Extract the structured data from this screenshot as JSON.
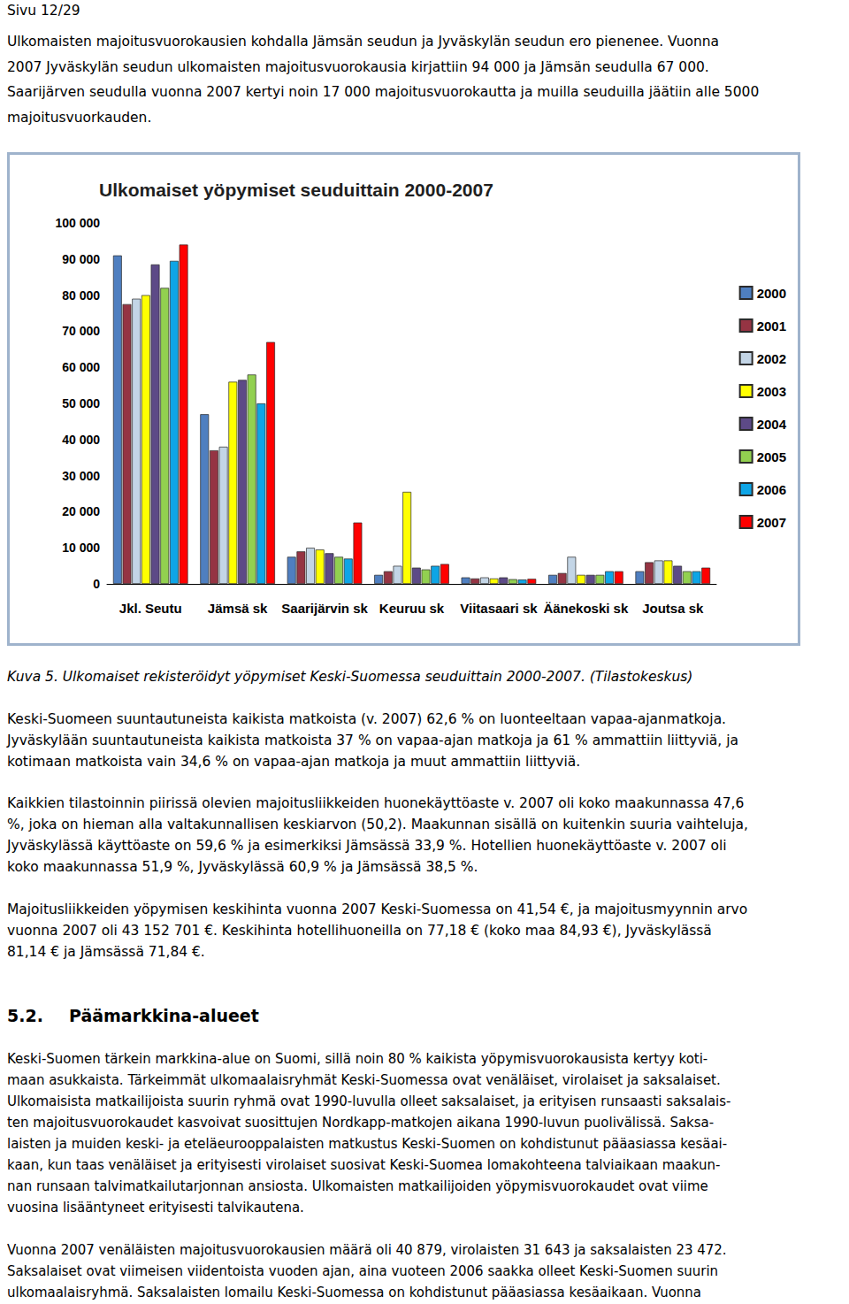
{
  "header": "Sivu 12/29",
  "intro": [
    "Ulkomaisten majoitusvuorokausien kohdalla Jämsän seudun ja Jyväskylän seudun ero pienenee. Vuonna",
    "2007 Jyväskylän seudun ulkomaisten majoitusvuorokausia kirjattiin 94 000 ja Jämsän seudulla 67 000.",
    "Saarijärven seudulla vuonna 2007 kertyi noin 17 000 majoitusvuorokautta ja muilla seuduilla jäätiin alle 5000",
    "majoitusvuorkauden."
  ],
  "chart_data": {
    "type": "bar",
    "title": "Ulkomaiset yöpymiset seuduittain 2000-2007",
    "categories": [
      "Jkl. Seutu",
      "Jämsä sk",
      "Saarijärvin sk",
      "Keuruu sk",
      "Viitasaari sk",
      "Äänekoski sk",
      "Joutsa sk"
    ],
    "series": [
      {
        "name": "2000",
        "color": "#4f7fc0",
        "values": [
          91000,
          47000,
          7500,
          2500,
          1800,
          2500,
          3500
        ]
      },
      {
        "name": "2001",
        "color": "#953443",
        "values": [
          77500,
          37000,
          9000,
          3500,
          1500,
          3000,
          6000
        ]
      },
      {
        "name": "2002",
        "color": "#c3d5e6",
        "values": [
          79000,
          38000,
          10000,
          5000,
          1800,
          7500,
          6500
        ]
      },
      {
        "name": "2003",
        "color": "#ffff00",
        "values": [
          80000,
          56000,
          9500,
          25500,
          1500,
          2500,
          6500
        ]
      },
      {
        "name": "2004",
        "color": "#5d4a87",
        "values": [
          88500,
          56500,
          8500,
          4500,
          1800,
          2500,
          5000
        ]
      },
      {
        "name": "2005",
        "color": "#92d050",
        "values": [
          82000,
          58000,
          7500,
          4000,
          1300,
          2500,
          3500
        ]
      },
      {
        "name": "2006",
        "color": "#0ea5e6",
        "values": [
          89500,
          50000,
          7000,
          5000,
          1200,
          3500,
          3500
        ]
      },
      {
        "name": "2007",
        "color": "#ff0000",
        "values": [
          94000,
          67000,
          17000,
          5500,
          1400,
          3500,
          4500
        ]
      }
    ],
    "ylim": [
      0,
      100000
    ],
    "yticks": [
      0,
      {
        "value": 10000,
        "label": "10 000"
      },
      {
        "value": 20000,
        "label": "20 000"
      },
      {
        "value": 30000,
        "label": "30 000"
      },
      {
        "value": 40000,
        "label": "40 000"
      },
      {
        "value": 50000,
        "label": "50 000"
      },
      {
        "value": 60000,
        "label": "60 000"
      },
      {
        "value": 70000,
        "label": "70 000"
      },
      {
        "value": 80000,
        "label": "80 000"
      },
      {
        "value": 90000,
        "label": "90 000"
      },
      {
        "value": 100000,
        "label": "100 000"
      }
    ],
    "grid": false,
    "legend": "right"
  },
  "caption": "Kuva 5. Ulkomaiset rekisteröidyt yöpymiset Keski-Suomessa seuduittain 2000-2007. (Tilastokeskus)",
  "paragraphs": [
    [
      "Keski-Suomeen suuntautuneista kaikista matkoista (v. 2007) 62,6 % on luonteeltaan vapaa-ajanmatkoja.",
      "Jyväskylään suuntautuneista kaikista matkoista 37 % on vapaa-ajan matkoja ja 61 % ammattiin liittyviä, ja",
      "kotimaan matkoista vain 34,6 % on vapaa-ajan matkoja ja muut ammattiin liittyviä."
    ],
    [
      "Kaikkien tilastoinnin piirissä olevien majoitusliikkeiden huonekäyttöaste v. 2007 oli koko maakunnassa 47,6",
      "%, joka on hieman alla valtakunnallisen keskiarvon (50,2). Maakunnan sisällä on kuitenkin suuria vaihteluja,",
      "Jyväskylässä käyttöaste on 59,6 % ja esimerkiksi Jämsässä 33,9 %. Hotellien huonekäyttöaste v. 2007 oli",
      "koko maakunnassa 51,9 %, Jyväskylässä 60,9 % ja Jämsässä 38,5 %."
    ],
    [
      "Majoitusliikkeiden yöpymisen keskihinta vuonna 2007 Keski-Suomessa on 41,54 €, ja majoitusmyynnin arvo",
      "vuonna 2007 oli 43 152 701 €. Keskihinta hotellihuoneilla on 77,18 € (koko maa 84,93 €), Jyväskylässä",
      "81,14 € ja Jämsässä 71,84 €."
    ]
  ],
  "section": {
    "number": "5.2.",
    "title": "Päämarkkina-alueet"
  },
  "section_paragraphs": [
    [
      "Keski-Suomen tärkein markkina-alue on Suomi, sillä noin 80 % kaikista yöpymisvuorokausista kertyy koti-",
      "maan asukkaista. Tärkeimmät ulkomaalaisryhmät Keski-Suomessa ovat venäläiset, virolaiset ja saksalaiset.",
      "Ulkomaisista matkailijoista suurin ryhmä ovat 1990-luvulla olleet saksalaiset, ja erityisen runsaasti saksalais-",
      "ten majoitusvuorokaudet kasvoivat suosittujen Nordkapp-matkojen aikana 1990-luvun puolivälissä. Saksa-",
      "laisten ja muiden keski- ja eteläeurooppalaisten matkustus Keski-Suomen on kohdistunut pääasiassa kesäai-",
      "kaan, kun taas venäläiset ja erityisesti virolaiset suosivat Keski-Suomea lomakohteena talviaikaan maakun-",
      "nan runsaan talvimatkailutarjonnan ansiosta. Ulkomaisten matkailijoiden yöpymisvuorokaudet ovat viime",
      "vuosina lisääntyneet erityisesti talvikautena."
    ],
    [
      "Vuonna 2007 venäläisten majoitusvuorokausien määrä oli 40 879, virolaisten 31 643 ja saksalaisten 23 472.",
      "Saksalaiset ovat viimeisen viidentoista vuoden ajan, aina vuoteen 2006 saakka olleet Keski-Suomen suurin",
      "ulkomaalaisryhmä. Saksalaisten lomailu Keski-Suomessa on kohdistunut pääasiassa kesäaikaan. Vuonna"
    ]
  ]
}
